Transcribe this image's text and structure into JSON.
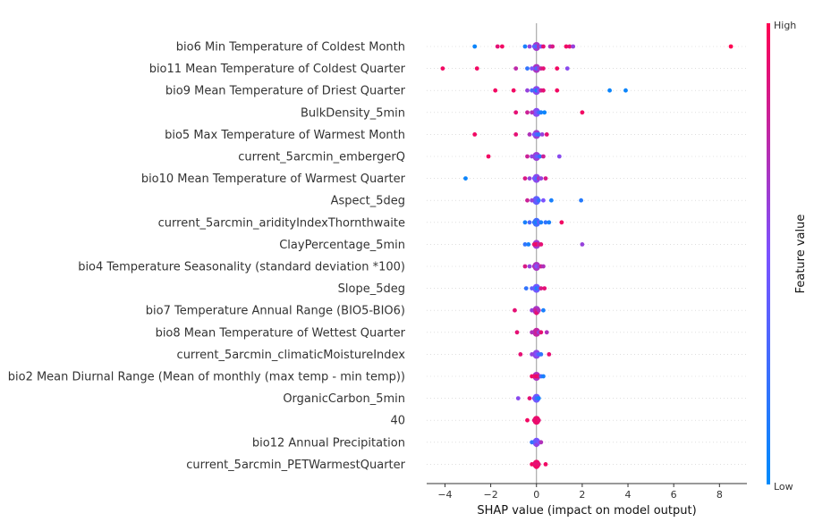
{
  "chart_data": {
    "type": "scatter",
    "subtype": "shap_beeswarm",
    "xlabel": "SHAP value (impact on model output)",
    "xlim": [
      -4.8,
      9.2
    ],
    "xticks": [
      -4,
      -2,
      0,
      2,
      4,
      6,
      8
    ],
    "zero_line": true,
    "row_gridlines": true,
    "colorbar": {
      "title": "Feature value",
      "high_label": "High",
      "low_label": "Low",
      "high_color": "#ff0052",
      "low_color": "#008bfb"
    },
    "features": [
      {
        "name": "bio6 Min Temperature of Coldest Month",
        "points": [
          [
            -2.7,
            0.05
          ],
          [
            -1.7,
            0.9
          ],
          [
            -1.5,
            0.95
          ],
          [
            -0.5,
            0.1
          ],
          [
            -0.3,
            0.6
          ],
          [
            -0.1,
            0.4
          ],
          [
            0.0,
            0.3
          ],
          [
            0.1,
            0.7
          ],
          [
            0.2,
            0.5
          ],
          [
            0.3,
            0.9
          ],
          [
            0.6,
            0.7
          ],
          [
            0.7,
            0.85
          ],
          [
            1.3,
            0.95
          ],
          [
            1.45,
            0.9
          ],
          [
            1.6,
            0.6
          ],
          [
            8.5,
            1.0
          ]
        ]
      },
      {
        "name": "bio11 Mean Temperature of Coldest Quarter",
        "points": [
          [
            -4.1,
            0.95
          ],
          [
            -2.6,
            0.95
          ],
          [
            -0.9,
            0.75
          ],
          [
            -0.4,
            0.2
          ],
          [
            -0.2,
            0.5
          ],
          [
            0.0,
            0.3
          ],
          [
            0.1,
            0.6
          ],
          [
            0.2,
            0.8
          ],
          [
            0.3,
            0.9
          ],
          [
            0.9,
            0.95
          ],
          [
            1.35,
            0.55
          ]
        ]
      },
      {
        "name": "bio9 Mean Temperature of Driest Quarter",
        "points": [
          [
            -1.8,
            0.95
          ],
          [
            -1.0,
            0.95
          ],
          [
            -0.4,
            0.6
          ],
          [
            -0.2,
            0.3
          ],
          [
            0.0,
            0.1
          ],
          [
            0.1,
            0.5
          ],
          [
            0.2,
            0.8
          ],
          [
            0.3,
            0.9
          ],
          [
            0.9,
            0.95
          ],
          [
            3.2,
            0.05
          ],
          [
            3.9,
            0.05
          ]
        ]
      },
      {
        "name": "BulkDensity_5min",
        "points": [
          [
            -0.9,
            0.9
          ],
          [
            -0.4,
            0.8
          ],
          [
            -0.2,
            0.7
          ],
          [
            0.0,
            0.5
          ],
          [
            0.1,
            0.3
          ],
          [
            0.2,
            0.1
          ],
          [
            0.35,
            0.05
          ],
          [
            2.0,
            0.95
          ]
        ]
      },
      {
        "name": "bio5 Max Temperature of Warmest Month",
        "points": [
          [
            -2.7,
            0.95
          ],
          [
            -0.9,
            0.9
          ],
          [
            -0.3,
            0.7
          ],
          [
            -0.1,
            0.5
          ],
          [
            0.0,
            0.3
          ],
          [
            0.1,
            0.2
          ],
          [
            0.25,
            0.6
          ],
          [
            0.45,
            0.9
          ]
        ]
      },
      {
        "name": "current_5arcmin_embergerQ",
        "points": [
          [
            -2.1,
            0.95
          ],
          [
            -0.4,
            0.8
          ],
          [
            -0.2,
            0.6
          ],
          [
            0.0,
            0.4
          ],
          [
            0.15,
            0.2
          ],
          [
            0.3,
            0.8
          ],
          [
            1.0,
            0.55
          ]
        ]
      },
      {
        "name": "bio10 Mean Temperature of Warmest Quarter",
        "points": [
          [
            -3.1,
            0.05
          ],
          [
            -0.5,
            0.85
          ],
          [
            -0.3,
            0.6
          ],
          [
            -0.1,
            0.5
          ],
          [
            0.0,
            0.3
          ],
          [
            0.1,
            0.7
          ],
          [
            0.2,
            0.6
          ],
          [
            0.4,
            0.85
          ]
        ]
      },
      {
        "name": "Aspect_5deg",
        "points": [
          [
            -0.4,
            0.8
          ],
          [
            -0.2,
            0.6
          ],
          [
            0.0,
            0.4
          ],
          [
            0.1,
            0.2
          ],
          [
            0.3,
            0.5
          ],
          [
            0.65,
            0.1
          ],
          [
            1.95,
            0.15
          ]
        ]
      },
      {
        "name": "current_5arcmin_aridityIndexThornthwaite",
        "points": [
          [
            -0.5,
            0.1
          ],
          [
            -0.3,
            0.3
          ],
          [
            -0.1,
            0.2
          ],
          [
            0.0,
            0.1
          ],
          [
            0.1,
            0.4
          ],
          [
            0.2,
            0.1
          ],
          [
            0.4,
            0.2
          ],
          [
            0.55,
            0.1
          ],
          [
            1.1,
            0.95
          ]
        ]
      },
      {
        "name": "ClayPercentage_5min",
        "points": [
          [
            -0.5,
            0.2
          ],
          [
            -0.35,
            0.1
          ],
          [
            -0.1,
            0.9
          ],
          [
            0.0,
            0.95
          ],
          [
            0.1,
            0.8
          ],
          [
            0.2,
            0.9
          ],
          [
            2.0,
            0.6
          ]
        ]
      },
      {
        "name": "bio4 Temperature Seasonality (standard deviation *100)",
        "points": [
          [
            -0.5,
            0.85
          ],
          [
            -0.3,
            0.6
          ],
          [
            -0.1,
            0.7
          ],
          [
            0.0,
            0.5
          ],
          [
            0.1,
            0.6
          ],
          [
            0.2,
            0.8
          ],
          [
            0.3,
            0.7
          ]
        ]
      },
      {
        "name": "Slope_5deg",
        "points": [
          [
            -0.45,
            0.2
          ],
          [
            -0.2,
            0.4
          ],
          [
            0.0,
            0.1
          ],
          [
            0.1,
            0.3
          ],
          [
            0.2,
            0.85
          ],
          [
            0.35,
            0.9
          ]
        ]
      },
      {
        "name": "bio7 Temperature Annual Range (BIO5-BIO6)",
        "points": [
          [
            -0.95,
            0.9
          ],
          [
            -0.2,
            0.6
          ],
          [
            -0.05,
            0.8
          ],
          [
            0.0,
            0.9
          ],
          [
            0.1,
            0.7
          ],
          [
            0.3,
            0.1
          ]
        ]
      },
      {
        "name": "bio8 Mean Temperature of Wettest Quarter",
        "points": [
          [
            -0.85,
            0.9
          ],
          [
            -0.2,
            0.7
          ],
          [
            0.0,
            0.8
          ],
          [
            0.1,
            0.6
          ],
          [
            0.2,
            0.9
          ],
          [
            0.45,
            0.7
          ]
        ]
      },
      {
        "name": "current_5arcmin_climaticMoistureIndex",
        "points": [
          [
            -0.7,
            0.9
          ],
          [
            -0.2,
            0.6
          ],
          [
            0.0,
            0.5
          ],
          [
            0.1,
            0.3
          ],
          [
            0.2,
            0.2
          ],
          [
            0.55,
            0.9
          ]
        ]
      },
      {
        "name": "bio2 Mean Diurnal Range (Mean of monthly (max temp - min temp))",
        "points": [
          [
            -0.2,
            0.95
          ],
          [
            -0.1,
            0.9
          ],
          [
            0.0,
            0.95
          ],
          [
            0.1,
            0.9
          ],
          [
            0.2,
            0.3
          ],
          [
            0.3,
            0.1
          ]
        ]
      },
      {
        "name": "OrganicCarbon_5min",
        "points": [
          [
            -0.8,
            0.55
          ],
          [
            -0.3,
            0.9
          ],
          [
            -0.1,
            0.5
          ],
          [
            0.0,
            0.2
          ],
          [
            0.1,
            0.1
          ]
        ]
      },
      {
        "name": "40",
        "points": [
          [
            -0.4,
            0.95
          ],
          [
            -0.1,
            0.9
          ],
          [
            0.0,
            0.95
          ],
          [
            0.1,
            0.9
          ]
        ]
      },
      {
        "name": "bio12 Annual Precipitation",
        "points": [
          [
            -0.2,
            0.2
          ],
          [
            -0.05,
            0.4
          ],
          [
            0.0,
            0.6
          ],
          [
            0.1,
            0.5
          ],
          [
            0.2,
            0.7
          ]
        ]
      },
      {
        "name": "current_5arcmin_PETWarmestQuarter",
        "points": [
          [
            -0.2,
            0.95
          ],
          [
            -0.05,
            0.9
          ],
          [
            0.0,
            0.95
          ],
          [
            0.1,
            0.9
          ],
          [
            0.4,
            0.95
          ]
        ]
      }
    ]
  }
}
